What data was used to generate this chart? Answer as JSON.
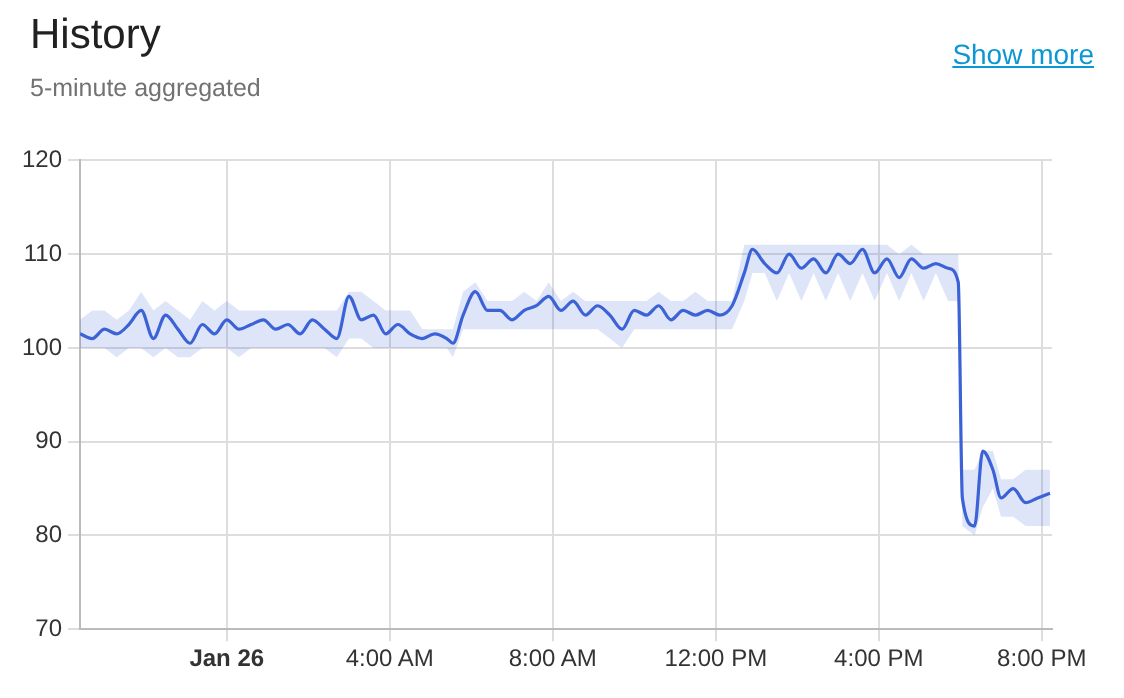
{
  "chart_data": {
    "type": "line",
    "title": "History",
    "subtitle": "5-minute aggregated",
    "annotations": [
      "Show more"
    ],
    "x": [
      -3.6,
      -3.3,
      -3.0,
      -2.7,
      -2.4,
      -2.1,
      -1.8,
      -1.5,
      -1.2,
      -0.9,
      -0.6,
      -0.3,
      0.0,
      0.3,
      0.6,
      0.9,
      1.2,
      1.5,
      1.8,
      2.1,
      2.4,
      2.7,
      3.0,
      3.3,
      3.6,
      3.9,
      4.2,
      4.5,
      4.8,
      5.1,
      5.4,
      5.55,
      5.8,
      6.1,
      6.4,
      6.7,
      7.0,
      7.3,
      7.6,
      7.9,
      8.2,
      8.5,
      8.8,
      9.1,
      9.4,
      9.7,
      10.0,
      10.3,
      10.6,
      10.9,
      11.2,
      11.5,
      11.8,
      12.1,
      12.4,
      12.7,
      12.9,
      13.2,
      13.5,
      13.8,
      14.1,
      14.4,
      14.7,
      15.0,
      15.3,
      15.6,
      15.9,
      16.2,
      16.5,
      16.8,
      17.1,
      17.4,
      17.7,
      17.95,
      18.05,
      18.35,
      18.55,
      18.8,
      19.0,
      19.3,
      19.6,
      19.9,
      20.2
    ],
    "series": [
      {
        "color": "#3b62d6",
        "values": [
          101.5,
          101,
          102,
          101.5,
          102.5,
          104,
          101,
          103.5,
          102,
          100.5,
          102.5,
          101.5,
          103,
          102,
          102.5,
          103,
          102,
          102.5,
          101.5,
          103,
          102,
          101,
          105.5,
          103,
          103.5,
          101.5,
          102.5,
          101.5,
          101,
          101.5,
          101,
          100.5,
          103.5,
          106,
          104,
          104,
          103,
          104,
          104.5,
          105.5,
          104,
          105,
          103.5,
          104.5,
          103.5,
          102,
          104,
          103.5,
          104.5,
          103,
          104,
          103.5,
          104,
          103.5,
          104.5,
          108,
          110.5,
          109,
          108,
          110,
          108.5,
          109.5,
          108,
          110,
          109,
          110.5,
          108,
          109.5,
          107.5,
          109.5,
          108.5,
          109,
          108.5,
          107,
          84,
          81,
          89,
          87,
          84,
          85,
          83.5,
          84,
          84.5
        ],
        "lower": [
          100,
          100,
          100,
          99,
          100,
          100,
          99,
          100,
          99,
          99,
          100,
          100,
          100,
          99,
          100,
          100,
          100,
          100,
          100,
          100,
          100,
          99,
          101,
          101,
          100,
          100,
          100,
          100,
          100,
          100,
          100,
          99,
          102,
          102,
          102,
          102,
          102,
          102,
          102,
          102,
          102,
          102,
          102,
          102,
          101,
          100,
          102,
          102,
          102,
          102,
          102,
          102,
          102,
          102,
          102,
          105,
          108,
          108,
          105,
          108,
          105,
          108,
          105,
          108,
          105,
          108,
          105,
          108,
          105,
          108,
          105,
          108,
          105,
          105,
          81,
          80,
          83,
          85,
          82,
          82,
          81,
          81,
          81
        ],
        "upper": [
          103,
          104,
          104,
          103,
          104,
          106,
          104,
          105,
          104,
          103,
          105,
          104,
          105,
          104,
          104,
          104,
          104,
          104,
          104,
          104,
          104,
          104,
          106,
          106,
          105,
          104,
          104,
          104,
          102,
          102,
          102,
          102,
          106,
          107,
          105,
          105,
          105,
          106,
          105,
          107,
          105,
          106,
          105,
          105,
          105,
          105,
          105,
          105,
          106,
          105,
          105,
          106,
          105,
          105,
          105,
          111,
          111,
          111,
          111,
          111,
          111,
          111,
          111,
          111,
          111,
          111,
          111,
          111,
          110,
          111,
          110,
          110,
          110,
          110,
          87,
          87,
          89,
          89,
          86,
          86,
          87,
          87,
          87
        ]
      }
    ],
    "xlim": [
      -3.6,
      20.25
    ],
    "xticks": [
      {
        "value": 0,
        "label": "Jan 26"
      },
      {
        "value": 4,
        "label": "4:00 AM"
      },
      {
        "value": 8,
        "label": "8:00 AM"
      },
      {
        "value": 12,
        "label": "12:00 PM"
      },
      {
        "value": 16,
        "label": "4:00 PM"
      },
      {
        "value": 20,
        "label": "8:00 PM"
      }
    ],
    "ylim": [
      70,
      120
    ],
    "yticks": [
      70,
      80,
      90,
      100,
      110,
      120
    ],
    "grid": true,
    "marker": "none",
    "line_style": "solid"
  }
}
